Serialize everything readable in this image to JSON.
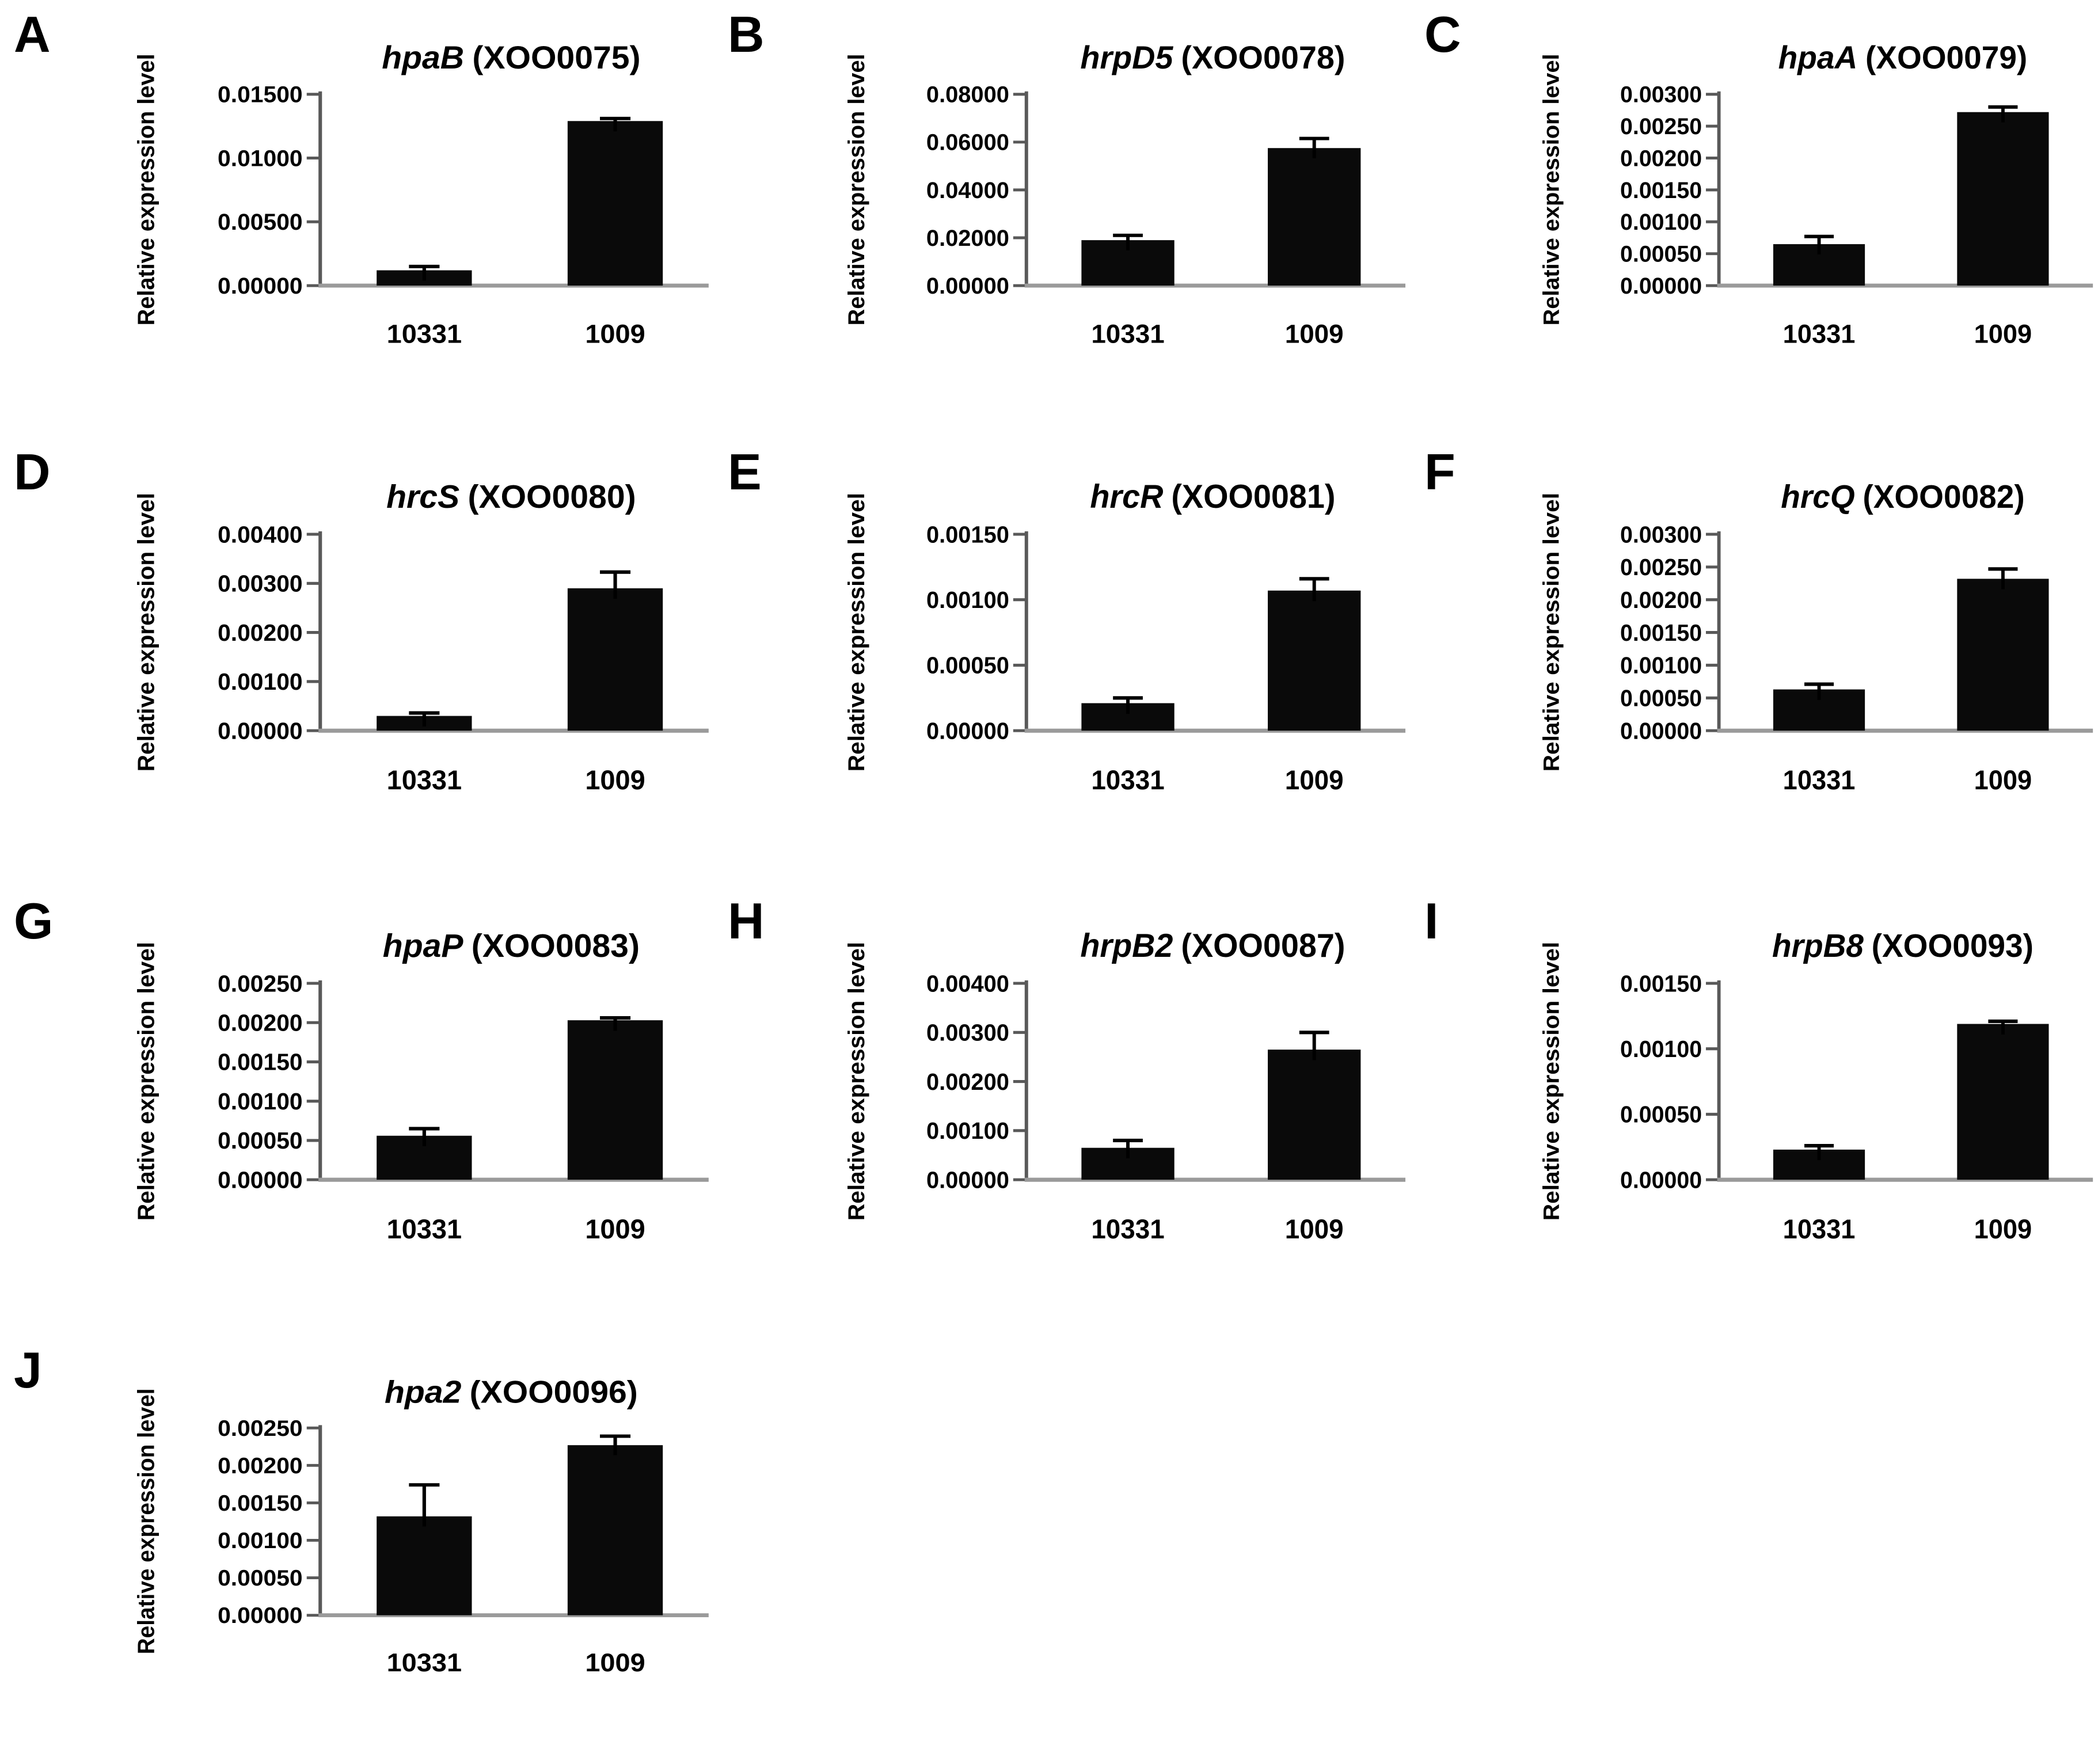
{
  "figure": {
    "description_visible_text": "Ten bar chart panels A-J comparing relative expression levels between strains 10331 and 1009",
    "x_categories": [
      "10331",
      "1009"
    ],
    "y_axis_label": "Relative expression level"
  },
  "chart_data": [
    {
      "type": "bar",
      "panel": "A",
      "gene": "hpaB",
      "locus": "(XOO0075)",
      "ylabel": "Relative expression level",
      "categories": [
        "10331",
        "1009"
      ],
      "values": [
        0.0012,
        0.0129
      ],
      "errors": [
        0.0003,
        0.0002
      ],
      "ylim": [
        0,
        0.015
      ],
      "ytick_step": 0.005,
      "ytick_labels": [
        "0.00000",
        "0.00500",
        "0.01000",
        "0.01500"
      ],
      "legend": "none",
      "grid": "off"
    },
    {
      "type": "bar",
      "panel": "B",
      "gene": "hrpD5",
      "locus": "(XOO0078)",
      "ylabel": "Relative expression level",
      "categories": [
        "10331",
        "1009"
      ],
      "values": [
        0.019,
        0.0575
      ],
      "errors": [
        0.002,
        0.004
      ],
      "ylim": [
        0,
        0.08
      ],
      "ytick_step": 0.02,
      "ytick_labels": [
        "0.00000",
        "0.02000",
        "0.04000",
        "0.06000",
        "0.08000"
      ],
      "legend": "none",
      "grid": "off"
    },
    {
      "type": "bar",
      "panel": "C",
      "gene": "hpaA",
      "locus": "(XOO0079)",
      "ylabel": "Relative expression level",
      "categories": [
        "10331",
        "1009"
      ],
      "values": [
        0.00065,
        0.00272
      ],
      "errors": [
        0.00012,
        8e-05
      ],
      "ylim": [
        0,
        0.003
      ],
      "ytick_step": 0.0005,
      "ytick_labels": [
        "0.00000",
        "0.00050",
        "0.00100",
        "0.00150",
        "0.00200",
        "0.00250",
        "0.00300"
      ],
      "legend": "none",
      "grid": "off"
    },
    {
      "type": "bar",
      "panel": "D",
      "gene": "hrcS",
      "locus": "(XOO0080)",
      "ylabel": "Relative expression level",
      "categories": [
        "10331",
        "1009"
      ],
      "values": [
        0.0003,
        0.0029
      ],
      "errors": [
        6e-05,
        0.00033
      ],
      "ylim": [
        0,
        0.004
      ],
      "ytick_step": 0.001,
      "ytick_labels": [
        "0.00000",
        "0.00100",
        "0.00200",
        "0.00300",
        "0.00400"
      ],
      "legend": "none",
      "grid": "off"
    },
    {
      "type": "bar",
      "panel": "E",
      "gene": "hrcR",
      "locus": "(XOO0081)",
      "ylabel": "Relative expression level",
      "categories": [
        "10331",
        "1009"
      ],
      "values": [
        0.00021,
        0.00107
      ],
      "errors": [
        4e-05,
        9e-05
      ],
      "ylim": [
        0,
        0.0015
      ],
      "ytick_step": 0.0005,
      "ytick_labels": [
        "0.00000",
        "0.00050",
        "0.00100",
        "0.00150"
      ],
      "legend": "none",
      "grid": "off"
    },
    {
      "type": "bar",
      "panel": "F",
      "gene": "hrcQ",
      "locus": "(XOO0082)",
      "ylabel": "Relative expression level",
      "categories": [
        "10331",
        "1009"
      ],
      "values": [
        0.00063,
        0.00232
      ],
      "errors": [
        8e-05,
        0.00015
      ],
      "ylim": [
        0,
        0.003
      ],
      "ytick_step": 0.0005,
      "ytick_labels": [
        "0.00000",
        "0.00050",
        "0.00100",
        "0.00150",
        "0.00200",
        "0.00250",
        "0.00300"
      ],
      "legend": "none",
      "grid": "off"
    },
    {
      "type": "bar",
      "panel": "G",
      "gene": "hpaP",
      "locus": "(XOO0083)",
      "ylabel": "Relative expression level",
      "categories": [
        "10331",
        "1009"
      ],
      "values": [
        0.00056,
        0.00203
      ],
      "errors": [
        9e-05,
        3e-05
      ],
      "ylim": [
        0,
        0.0025
      ],
      "ytick_step": 0.0005,
      "ytick_labels": [
        "0.00000",
        "0.00050",
        "0.00100",
        "0.00150",
        "0.00200",
        "0.00250"
      ],
      "legend": "none",
      "grid": "off"
    },
    {
      "type": "bar",
      "panel": "H",
      "gene": "hrpB2",
      "locus": "(XOO0087)",
      "ylabel": "Relative expression level",
      "categories": [
        "10331",
        "1009"
      ],
      "values": [
        0.00065,
        0.00265
      ],
      "errors": [
        0.00015,
        0.00035
      ],
      "ylim": [
        0,
        0.004
      ],
      "ytick_step": 0.001,
      "ytick_labels": [
        "0.00000",
        "0.00100",
        "0.00200",
        "0.00300",
        "0.00400"
      ],
      "legend": "none",
      "grid": "off"
    },
    {
      "type": "bar",
      "panel": "I",
      "gene": "hrpB8",
      "locus": "(XOO0093)",
      "ylabel": "Relative expression level",
      "categories": [
        "10331",
        "1009"
      ],
      "values": [
        0.00023,
        0.00119
      ],
      "errors": [
        3e-05,
        2e-05
      ],
      "ylim": [
        0,
        0.0015
      ],
      "ytick_step": 0.0005,
      "ytick_labels": [
        "0.00000",
        "0.00050",
        "0.00100",
        "0.00150"
      ],
      "legend": "none",
      "grid": "off"
    },
    {
      "type": "bar",
      "panel": "J",
      "gene": "hpa2",
      "locus": "(XOO0096)",
      "ylabel": "Relative expression level",
      "categories": [
        "10331",
        "1009"
      ],
      "values": [
        0.00132,
        0.00227
      ],
      "errors": [
        0.00042,
        0.00012
      ],
      "ylim": [
        0,
        0.0025
      ],
      "ytick_step": 0.0005,
      "ytick_labels": [
        "0.00000",
        "0.00050",
        "0.00100",
        "0.00150",
        "0.00200",
        "0.00250"
      ],
      "legend": "none",
      "grid": "off"
    }
  ]
}
